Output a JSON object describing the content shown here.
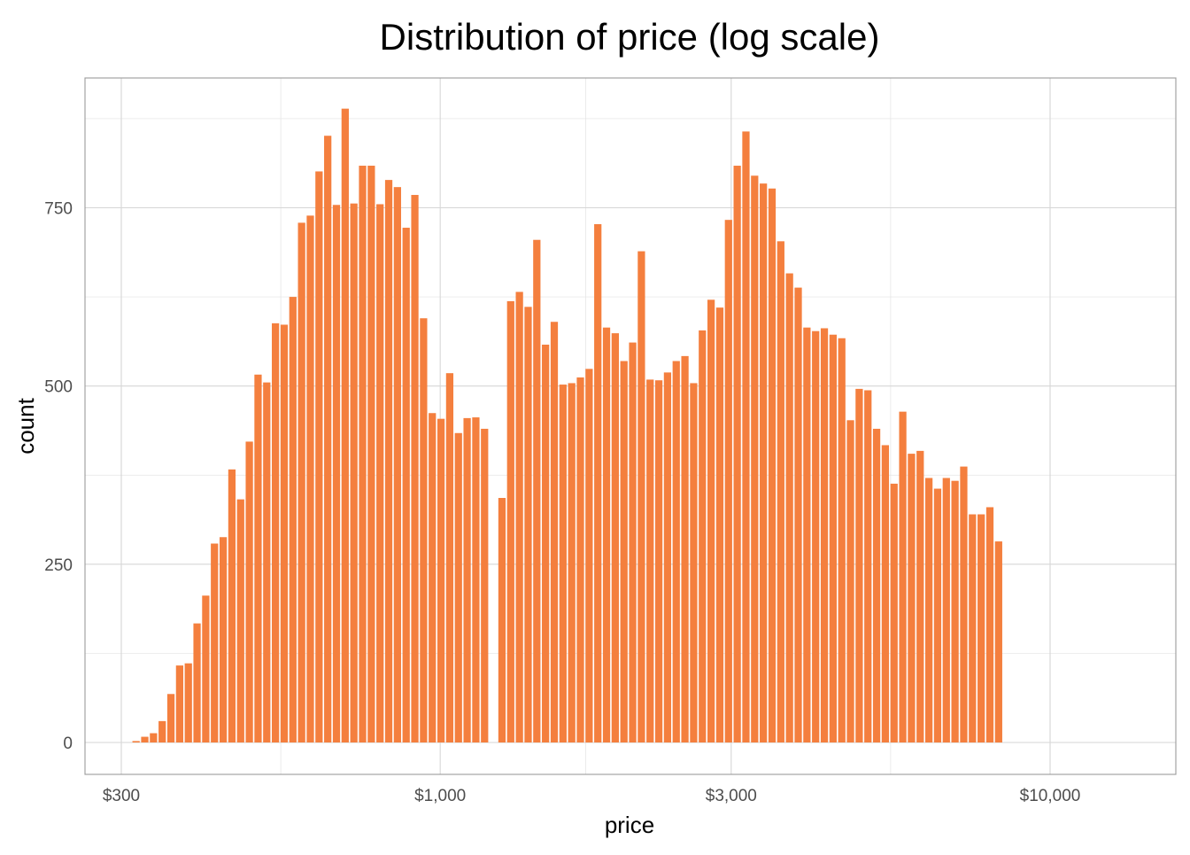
{
  "chart_data": {
    "type": "bar",
    "title": "Distribution of price (log scale)",
    "xlabel": "price",
    "ylabel": "count",
    "x_scale": "log10",
    "xlim": [
      300,
      13500
    ],
    "ylim": [
      -45,
      930
    ],
    "x_ticks": [
      {
        "value": 300,
        "label": "$300"
      },
      {
        "value": 1000,
        "label": "$1,000"
      },
      {
        "value": 3000,
        "label": "$3,000"
      },
      {
        "value": 10000,
        "label": "$10,000"
      }
    ],
    "y_ticks": [
      {
        "value": 0,
        "label": "0"
      },
      {
        "value": 250,
        "label": "250"
      },
      {
        "value": 500,
        "label": "500"
      },
      {
        "value": 750,
        "label": "750"
      }
    ],
    "grid": true,
    "legend": "none",
    "bar_color": "#F47F3E",
    "bins": {
      "first_bin_center": 317.2,
      "log10_bin_width": 0.014285,
      "counts": [
        2,
        8,
        13,
        30,
        68,
        108,
        111,
        167,
        206,
        279,
        288,
        383,
        341,
        422,
        516,
        505,
        588,
        586,
        625,
        729,
        739,
        801,
        851,
        754,
        889,
        756,
        809,
        809,
        755,
        789,
        779,
        722,
        768,
        595,
        462,
        454,
        518,
        434,
        455,
        456,
        440,
        0,
        343,
        619,
        632,
        611,
        705,
        558,
        590,
        502,
        504,
        512,
        524,
        727,
        582,
        574,
        535,
        561,
        689,
        509,
        508,
        519,
        535,
        542,
        504,
        578,
        621,
        610,
        733,
        809,
        857,
        795,
        784,
        777,
        703,
        658,
        638,
        582,
        577,
        581,
        572,
        567,
        452,
        496,
        494,
        440,
        417,
        363,
        464,
        405,
        409,
        371,
        356,
        371,
        367,
        387,
        320,
        320,
        330,
        282
      ]
    }
  }
}
